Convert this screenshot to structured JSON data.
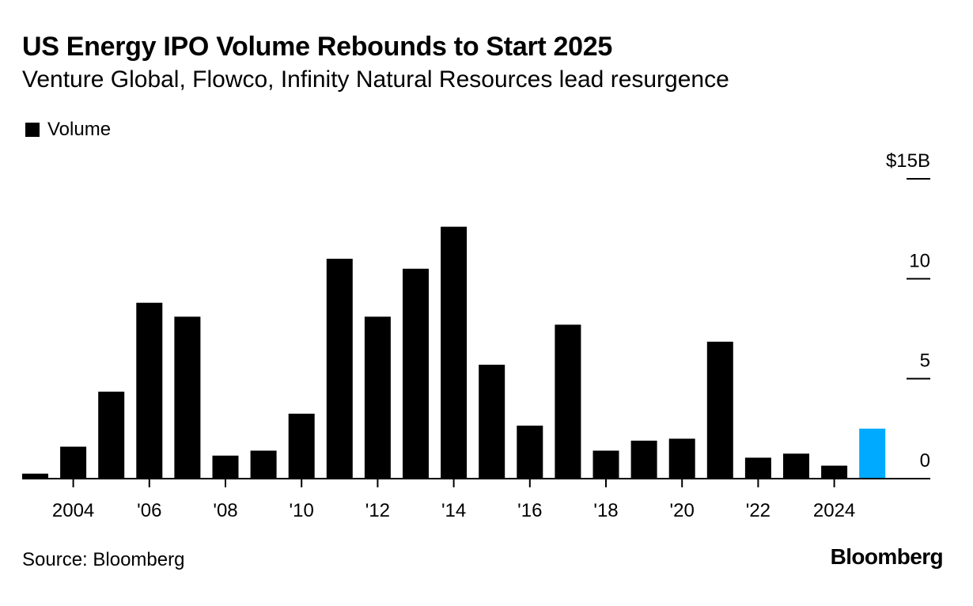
{
  "header": {
    "title": "US Energy IPO Volume Rebounds to Start 2025",
    "subtitle": "Venture Global, Flowco, Infinity Natural Resources lead resurgence"
  },
  "legend": {
    "label": "Volume"
  },
  "footer": {
    "source": "Source: Bloomberg",
    "logo": "Bloomberg"
  },
  "colors": {
    "bar": "#000000",
    "highlight": "#00aaff",
    "axis": "#000000"
  },
  "chart_data": {
    "type": "bar",
    "title": "US Energy IPO Volume Rebounds to Start 2025",
    "subtitle": "Venture Global, Flowco, Infinity Natural Resources lead resurgence",
    "xlabel": "",
    "ylabel": "",
    "ylim": [
      0,
      15
    ],
    "yticks": [
      {
        "value": 0,
        "label": "0"
      },
      {
        "value": 5,
        "label": "5"
      },
      {
        "value": 10,
        "label": "10"
      },
      {
        "value": 15,
        "label": "$15B"
      }
    ],
    "categories": [
      "2003",
      "2004",
      "2005",
      "2006",
      "2007",
      "2008",
      "2009",
      "2010",
      "2011",
      "2012",
      "2013",
      "2014",
      "2015",
      "2016",
      "2017",
      "2018",
      "2019",
      "2020",
      "2021",
      "2022",
      "2023",
      "2024",
      "2025"
    ],
    "xtick_labels": [
      {
        "category": "2004",
        "label": "2004"
      },
      {
        "category": "2006",
        "label": "'06"
      },
      {
        "category": "2008",
        "label": "'08"
      },
      {
        "category": "2010",
        "label": "'10"
      },
      {
        "category": "2012",
        "label": "'12"
      },
      {
        "category": "2014",
        "label": "'14"
      },
      {
        "category": "2016",
        "label": "'16"
      },
      {
        "category": "2018",
        "label": "'18"
      },
      {
        "category": "2020",
        "label": "'20"
      },
      {
        "category": "2022",
        "label": "'22"
      },
      {
        "category": "2024",
        "label": "2024"
      }
    ],
    "series": [
      {
        "name": "Volume",
        "values": [
          0.25,
          1.6,
          4.35,
          8.8,
          8.1,
          1.15,
          1.4,
          3.25,
          11.0,
          8.1,
          10.5,
          12.6,
          5.7,
          2.65,
          7.7,
          1.4,
          1.9,
          2.0,
          6.85,
          1.05,
          1.25,
          0.65,
          2.5
        ]
      }
    ],
    "highlight_category": "2025",
    "legend": [
      "Volume"
    ],
    "grid": false
  }
}
